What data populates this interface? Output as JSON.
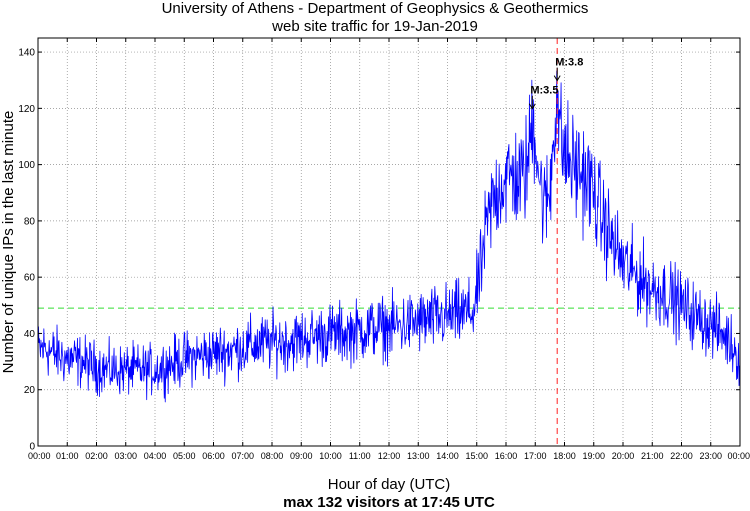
{
  "chart_data": {
    "type": "line",
    "title_line1": "University of Athens - Department of Geophysics & Geothermics",
    "title_line2": "web site traffic for 19-Jan-2019",
    "xlabel": "Hour of day (UTC)",
    "ylabel": "Number of unique IPs in the last minute",
    "footer": "max 132 visitors at 17:45 UTC",
    "xlim": [
      0,
      24
    ],
    "ylim": [
      0,
      145
    ],
    "yticks": [
      0,
      20,
      40,
      60,
      80,
      100,
      120,
      140
    ],
    "xticks": [
      {
        "hour": 0,
        "label": "00:00"
      },
      {
        "hour": 1,
        "label": "01:00"
      },
      {
        "hour": 2,
        "label": "02:00"
      },
      {
        "hour": 3,
        "label": "03:00"
      },
      {
        "hour": 4,
        "label": "04:00"
      },
      {
        "hour": 5,
        "label": "05:00"
      },
      {
        "hour": 6,
        "label": "06:00"
      },
      {
        "hour": 7,
        "label": "07:00"
      },
      {
        "hour": 8,
        "label": "08:00"
      },
      {
        "hour": 9,
        "label": "09:00"
      },
      {
        "hour": 10,
        "label": "10:00"
      },
      {
        "hour": 11,
        "label": "11:00"
      },
      {
        "hour": 12,
        "label": "12:00"
      },
      {
        "hour": 13,
        "label": "13:00"
      },
      {
        "hour": 14,
        "label": "14:00"
      },
      {
        "hour": 15,
        "label": "15:00"
      },
      {
        "hour": 16,
        "label": "16:00"
      },
      {
        "hour": 17,
        "label": "17:00"
      },
      {
        "hour": 18,
        "label": "18:00"
      },
      {
        "hour": 19,
        "label": "19:00"
      },
      {
        "hour": 20,
        "label": "20:00"
      },
      {
        "hour": 21,
        "label": "21:00"
      },
      {
        "hour": 22,
        "label": "22:00"
      },
      {
        "hour": 23,
        "label": "23:00"
      },
      {
        "hour": 24,
        "label": "00:00"
      }
    ],
    "grid": true,
    "average_line": 49,
    "max_marker_hour": 17.75,
    "series": [
      {
        "color": "#0000ff",
        "trend": [
          [
            0.0,
            34
          ],
          [
            0.25,
            35
          ],
          [
            0.5,
            33
          ],
          [
            1.0,
            31
          ],
          [
            1.5,
            30
          ],
          [
            2.0,
            28
          ],
          [
            2.5,
            27
          ],
          [
            3.0,
            27
          ],
          [
            3.5,
            27
          ],
          [
            4.0,
            27
          ],
          [
            4.5,
            29
          ],
          [
            5.0,
            31
          ],
          [
            5.5,
            32
          ],
          [
            6.0,
            33
          ],
          [
            6.5,
            34
          ],
          [
            7.0,
            35
          ],
          [
            7.5,
            36
          ],
          [
            8.0,
            37
          ],
          [
            8.5,
            37
          ],
          [
            9.0,
            38
          ],
          [
            9.5,
            39
          ],
          [
            10.0,
            40
          ],
          [
            10.5,
            40
          ],
          [
            11.0,
            41
          ],
          [
            11.5,
            42
          ],
          [
            12.0,
            42
          ],
          [
            12.5,
            43
          ],
          [
            13.0,
            44
          ],
          [
            13.5,
            45
          ],
          [
            14.0,
            46
          ],
          [
            14.5,
            47
          ],
          [
            14.9,
            48
          ],
          [
            15.1,
            60
          ],
          [
            15.3,
            75
          ],
          [
            15.5,
            85
          ],
          [
            15.75,
            92
          ],
          [
            16.0,
            95
          ],
          [
            16.25,
            96
          ],
          [
            16.5,
            94
          ],
          [
            16.75,
            100
          ],
          [
            16.9,
            118
          ],
          [
            17.0,
            112
          ],
          [
            17.15,
            95
          ],
          [
            17.3,
            85
          ],
          [
            17.5,
            90
          ],
          [
            17.65,
            115
          ],
          [
            17.75,
            128
          ],
          [
            17.85,
            110
          ],
          [
            18.0,
            104
          ],
          [
            18.25,
            100
          ],
          [
            18.5,
            98
          ],
          [
            18.75,
            95
          ],
          [
            19.0,
            90
          ],
          [
            19.25,
            82
          ],
          [
            19.5,
            76
          ],
          [
            19.75,
            70
          ],
          [
            20.0,
            65
          ],
          [
            20.5,
            60
          ],
          [
            21.0,
            56
          ],
          [
            21.5,
            54
          ],
          [
            22.0,
            50
          ],
          [
            22.5,
            46
          ],
          [
            23.0,
            43
          ],
          [
            23.5,
            39
          ],
          [
            23.8,
            35
          ],
          [
            24.0,
            30
          ]
        ]
      }
    ],
    "annotations": [
      {
        "label": "M:3.5",
        "hour": 16.9,
        "y": 122
      },
      {
        "label": "M:3.8",
        "hour": 17.75,
        "y": 132
      }
    ]
  }
}
